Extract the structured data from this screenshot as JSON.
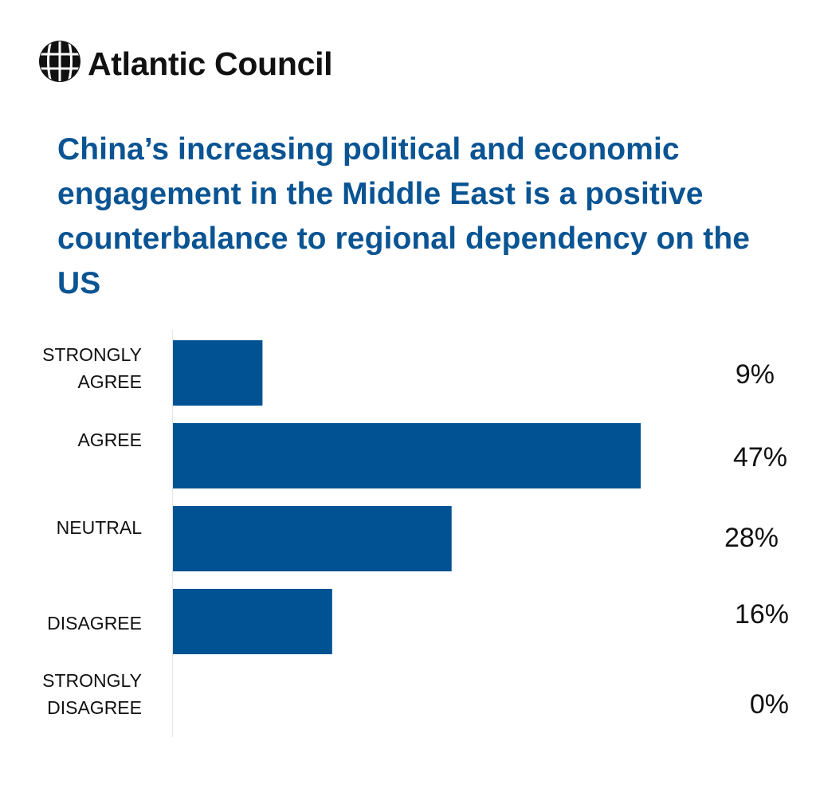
{
  "brand": {
    "logo_icon": "globe-icon",
    "name": "Atlantic Council"
  },
  "colors": {
    "title": "#0a5493",
    "bar": "#005293",
    "text": "#111111"
  },
  "chart_data": {
    "type": "bar",
    "orientation": "horizontal",
    "title": "China’s increasing political and economic engagement in the Middle East is a positive counterbalance to regional dependency on the US",
    "categories": [
      [
        "STRONGLY",
        "AGREE"
      ],
      [
        "AGREE"
      ],
      [
        "NEUTRAL"
      ],
      [
        "DISAGREE"
      ],
      [
        "STRONGLY",
        "DISAGREE"
      ]
    ],
    "values": [
      9,
      47,
      28,
      16,
      0
    ],
    "value_labels": [
      "9%",
      "47%",
      "28%",
      "16%",
      "0%"
    ],
    "unit": "%",
    "xlim": [
      0,
      50
    ],
    "grid": false,
    "legend": "none"
  }
}
